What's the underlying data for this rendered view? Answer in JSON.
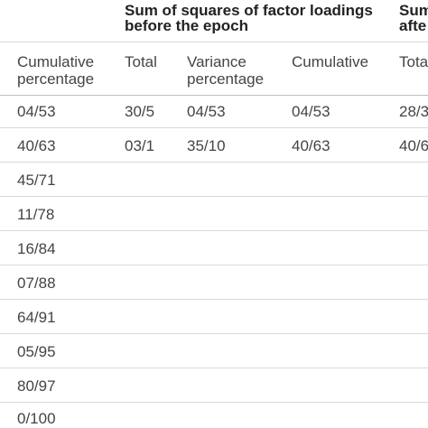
{
  "group_headers": [
    {
      "line1": "Sum of squares of factor loadings",
      "line2": "before the epoch"
    },
    {
      "line1": "Sum",
      "line2": "afte"
    }
  ],
  "column_headers": [
    {
      "line1": "Cumulative",
      "line2": "percentage"
    },
    {
      "line1": "Total",
      "line2": ""
    },
    {
      "line1": "Variance",
      "line2": "percentage"
    },
    {
      "line1": "Cumulative",
      "line2": ""
    },
    {
      "line1": "Total",
      "line2": ""
    }
  ],
  "rows": [
    [
      "04/53",
      "30/5",
      "04/53",
      "04/53",
      "28/3"
    ],
    [
      "40/63",
      "03/1",
      "35/10",
      "40/63",
      "40/6"
    ],
    [
      "45/71",
      "",
      "",
      "",
      ""
    ],
    [
      "11/78",
      "",
      "",
      "",
      ""
    ],
    [
      "16/84",
      "",
      "",
      "",
      ""
    ],
    [
      "07/88",
      "",
      "",
      "",
      ""
    ],
    [
      "64/91",
      "",
      "",
      "",
      ""
    ],
    [
      "05/95",
      "",
      "",
      "",
      ""
    ],
    [
      "80/97",
      "",
      "",
      "",
      ""
    ],
    [
      "0/100",
      "",
      "",
      "",
      ""
    ]
  ]
}
